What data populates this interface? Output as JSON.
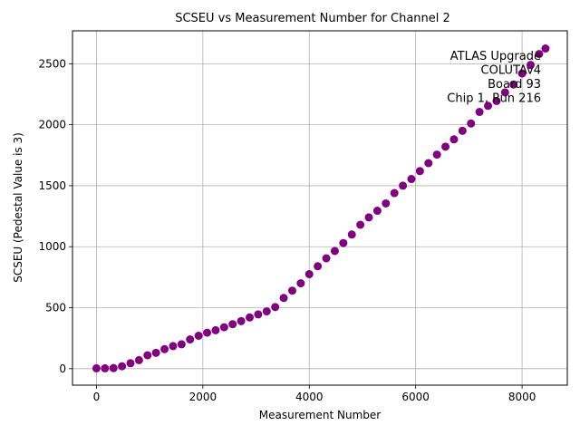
{
  "chart_data": {
    "type": "scatter",
    "title": "SCSEU vs Measurement Number for Channel 2",
    "xlabel": "Measurement Number",
    "ylabel": "SCSEU (Pedestal Value is 3)",
    "xlim": [
      -450,
      8850
    ],
    "ylim": [
      -135,
      2770
    ],
    "xticks": [
      0,
      2000,
      4000,
      6000,
      8000
    ],
    "yticks": [
      0,
      500,
      1000,
      1500,
      2000,
      2500
    ],
    "grid": true,
    "marker_color": "#800080",
    "annotation": [
      "ATLAS Upgrade",
      "COLUTAv4",
      "Board 93",
      "Chip 1, Run 216"
    ],
    "series": [
      {
        "x": [
          0,
          160,
          320,
          480,
          640,
          800,
          960,
          1120,
          1280,
          1440,
          1600,
          1760,
          1920,
          2080,
          2240,
          2400,
          2560,
          2720,
          2880,
          3040,
          3200,
          3360,
          3520,
          3680,
          3840,
          4000,
          4160,
          4320,
          4480,
          4640,
          4800,
          4960,
          5120,
          5280,
          5440,
          5600,
          5760,
          5920,
          6080,
          6240,
          6400,
          6560,
          6720,
          6880,
          7040,
          7200,
          7360,
          7520,
          7680,
          7840,
          8000,
          8160,
          8320,
          8440
        ],
        "y": [
          3,
          3,
          5,
          20,
          45,
          70,
          110,
          130,
          160,
          185,
          200,
          240,
          270,
          295,
          315,
          340,
          365,
          390,
          420,
          445,
          470,
          505,
          580,
          640,
          700,
          775,
          840,
          905,
          965,
          1030,
          1100,
          1180,
          1240,
          1295,
          1355,
          1440,
          1500,
          1555,
          1620,
          1685,
          1755,
          1820,
          1880,
          1950,
          2010,
          2105,
          2155,
          2195,
          2265,
          2330,
          2420,
          2490,
          2580,
          2625
        ]
      }
    ]
  }
}
